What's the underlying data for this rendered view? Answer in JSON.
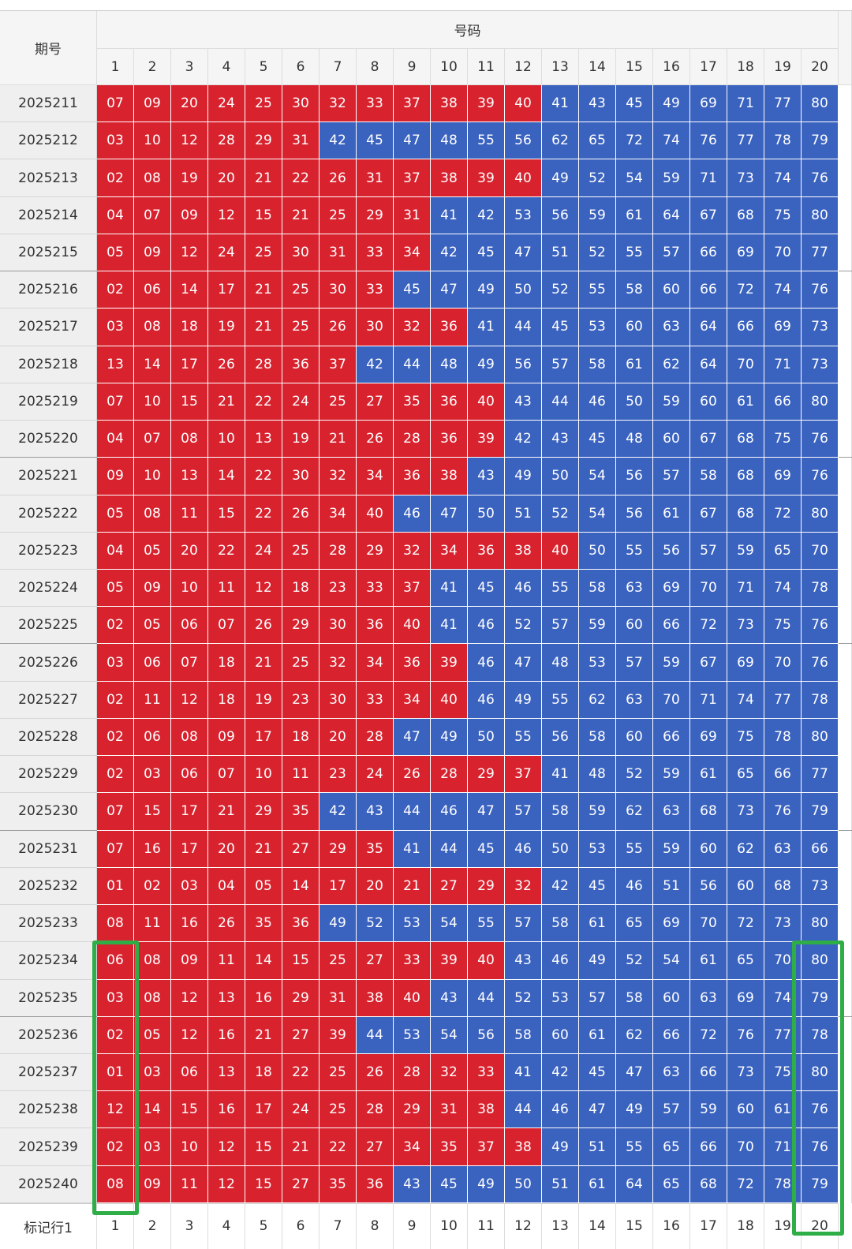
{
  "table": {
    "header": {
      "period": "期号",
      "numbers": "号码",
      "columns": [
        1,
        2,
        3,
        4,
        5,
        6,
        7,
        8,
        9,
        10,
        11,
        12,
        13,
        14,
        15,
        16,
        17,
        18,
        19,
        20
      ]
    },
    "rows": [
      {
        "period": "2025211",
        "numbers": [
          "07",
          "09",
          "20",
          "24",
          "25",
          "30",
          "32",
          "33",
          "37",
          "38",
          "39",
          "40",
          "41",
          "43",
          "45",
          "49",
          "69",
          "71",
          "77",
          "80"
        ]
      },
      {
        "period": "2025212",
        "numbers": [
          "03",
          "10",
          "12",
          "28",
          "29",
          "31",
          "42",
          "45",
          "47",
          "48",
          "55",
          "56",
          "62",
          "65",
          "72",
          "74",
          "76",
          "77",
          "78",
          "79"
        ]
      },
      {
        "period": "2025213",
        "numbers": [
          "02",
          "08",
          "19",
          "20",
          "21",
          "22",
          "26",
          "31",
          "37",
          "38",
          "39",
          "40",
          "49",
          "52",
          "54",
          "59",
          "71",
          "73",
          "74",
          "76"
        ]
      },
      {
        "period": "2025214",
        "numbers": [
          "04",
          "07",
          "09",
          "12",
          "15",
          "21",
          "25",
          "29",
          "31",
          "41",
          "42",
          "53",
          "56",
          "59",
          "61",
          "64",
          "67",
          "68",
          "75",
          "80"
        ]
      },
      {
        "period": "2025215",
        "numbers": [
          "05",
          "09",
          "12",
          "24",
          "25",
          "30",
          "31",
          "33",
          "34",
          "42",
          "45",
          "47",
          "51",
          "52",
          "55",
          "57",
          "66",
          "69",
          "70",
          "77"
        ]
      },
      {
        "period": "2025216",
        "numbers": [
          "02",
          "06",
          "14",
          "17",
          "21",
          "25",
          "30",
          "33",
          "45",
          "47",
          "49",
          "50",
          "52",
          "55",
          "58",
          "60",
          "66",
          "72",
          "74",
          "76"
        ]
      },
      {
        "period": "2025217",
        "numbers": [
          "03",
          "08",
          "18",
          "19",
          "21",
          "25",
          "26",
          "30",
          "32",
          "36",
          "41",
          "44",
          "45",
          "53",
          "60",
          "63",
          "64",
          "66",
          "69",
          "73"
        ]
      },
      {
        "period": "2025218",
        "numbers": [
          "13",
          "14",
          "17",
          "26",
          "28",
          "36",
          "37",
          "42",
          "44",
          "48",
          "49",
          "56",
          "57",
          "58",
          "61",
          "62",
          "64",
          "70",
          "71",
          "73"
        ]
      },
      {
        "period": "2025219",
        "numbers": [
          "07",
          "10",
          "15",
          "21",
          "22",
          "24",
          "25",
          "27",
          "35",
          "36",
          "40",
          "43",
          "44",
          "46",
          "50",
          "59",
          "60",
          "61",
          "66",
          "80"
        ]
      },
      {
        "period": "2025220",
        "numbers": [
          "04",
          "07",
          "08",
          "10",
          "13",
          "19",
          "21",
          "26",
          "28",
          "36",
          "39",
          "42",
          "43",
          "45",
          "48",
          "60",
          "67",
          "68",
          "75",
          "76"
        ]
      },
      {
        "period": "2025221",
        "numbers": [
          "09",
          "10",
          "13",
          "14",
          "22",
          "30",
          "32",
          "34",
          "36",
          "38",
          "43",
          "49",
          "50",
          "54",
          "56",
          "57",
          "58",
          "68",
          "69",
          "76"
        ]
      },
      {
        "period": "2025222",
        "numbers": [
          "05",
          "08",
          "11",
          "15",
          "22",
          "26",
          "34",
          "40",
          "46",
          "47",
          "50",
          "51",
          "52",
          "54",
          "56",
          "61",
          "67",
          "68",
          "72",
          "80"
        ]
      },
      {
        "period": "2025223",
        "numbers": [
          "04",
          "05",
          "20",
          "22",
          "24",
          "25",
          "28",
          "29",
          "32",
          "34",
          "36",
          "38",
          "40",
          "50",
          "55",
          "56",
          "57",
          "59",
          "65",
          "70"
        ]
      },
      {
        "period": "2025224",
        "numbers": [
          "05",
          "09",
          "10",
          "11",
          "12",
          "18",
          "23",
          "33",
          "37",
          "41",
          "45",
          "46",
          "55",
          "58",
          "63",
          "69",
          "70",
          "71",
          "74",
          "78"
        ]
      },
      {
        "period": "2025225",
        "numbers": [
          "02",
          "05",
          "06",
          "07",
          "26",
          "29",
          "30",
          "36",
          "40",
          "41",
          "46",
          "52",
          "57",
          "59",
          "60",
          "66",
          "72",
          "73",
          "75",
          "76"
        ]
      },
      {
        "period": "2025226",
        "numbers": [
          "03",
          "06",
          "07",
          "18",
          "21",
          "25",
          "32",
          "34",
          "36",
          "39",
          "46",
          "47",
          "48",
          "53",
          "57",
          "59",
          "67",
          "69",
          "70",
          "76"
        ]
      },
      {
        "period": "2025227",
        "numbers": [
          "02",
          "11",
          "12",
          "18",
          "19",
          "23",
          "30",
          "33",
          "34",
          "40",
          "46",
          "49",
          "55",
          "62",
          "63",
          "70",
          "71",
          "74",
          "77",
          "78"
        ]
      },
      {
        "period": "2025228",
        "numbers": [
          "02",
          "06",
          "08",
          "09",
          "17",
          "18",
          "20",
          "28",
          "47",
          "49",
          "50",
          "55",
          "56",
          "58",
          "60",
          "66",
          "69",
          "75",
          "78",
          "80"
        ]
      },
      {
        "period": "2025229",
        "numbers": [
          "02",
          "03",
          "06",
          "07",
          "10",
          "11",
          "23",
          "24",
          "26",
          "28",
          "29",
          "37",
          "41",
          "48",
          "52",
          "59",
          "61",
          "65",
          "66",
          "77"
        ]
      },
      {
        "period": "2025230",
        "numbers": [
          "07",
          "15",
          "17",
          "21",
          "29",
          "35",
          "42",
          "43",
          "44",
          "46",
          "47",
          "57",
          "58",
          "59",
          "62",
          "63",
          "68",
          "73",
          "76",
          "79"
        ]
      },
      {
        "period": "2025231",
        "numbers": [
          "07",
          "16",
          "17",
          "20",
          "21",
          "27",
          "29",
          "35",
          "41",
          "44",
          "45",
          "46",
          "50",
          "53",
          "55",
          "59",
          "60",
          "62",
          "63",
          "66"
        ]
      },
      {
        "period": "2025232",
        "numbers": [
          "01",
          "02",
          "03",
          "04",
          "05",
          "14",
          "17",
          "20",
          "21",
          "27",
          "29",
          "32",
          "42",
          "45",
          "46",
          "51",
          "56",
          "60",
          "68",
          "73"
        ]
      },
      {
        "period": "2025233",
        "numbers": [
          "08",
          "11",
          "16",
          "26",
          "35",
          "36",
          "49",
          "52",
          "53",
          "54",
          "55",
          "57",
          "58",
          "61",
          "65",
          "69",
          "70",
          "72",
          "73",
          "80"
        ]
      },
      {
        "period": "2025234",
        "numbers": [
          "06",
          "08",
          "09",
          "11",
          "14",
          "15",
          "25",
          "27",
          "33",
          "39",
          "40",
          "43",
          "46",
          "49",
          "52",
          "54",
          "61",
          "65",
          "70",
          "80"
        ]
      },
      {
        "period": "2025235",
        "numbers": [
          "03",
          "08",
          "12",
          "13",
          "16",
          "29",
          "31",
          "38",
          "40",
          "43",
          "44",
          "52",
          "53",
          "57",
          "58",
          "60",
          "63",
          "69",
          "74",
          "79"
        ]
      },
      {
        "period": "2025236",
        "numbers": [
          "02",
          "05",
          "12",
          "16",
          "21",
          "27",
          "39",
          "44",
          "53",
          "54",
          "56",
          "58",
          "60",
          "61",
          "62",
          "66",
          "72",
          "76",
          "77",
          "78"
        ]
      },
      {
        "period": "2025237",
        "numbers": [
          "01",
          "03",
          "06",
          "13",
          "18",
          "22",
          "25",
          "26",
          "28",
          "32",
          "33",
          "41",
          "42",
          "45",
          "47",
          "63",
          "66",
          "73",
          "75",
          "80"
        ]
      },
      {
        "period": "2025238",
        "numbers": [
          "12",
          "14",
          "15",
          "16",
          "17",
          "24",
          "25",
          "28",
          "29",
          "31",
          "38",
          "44",
          "46",
          "47",
          "49",
          "57",
          "59",
          "60",
          "61",
          "76"
        ]
      },
      {
        "period": "2025239",
        "numbers": [
          "02",
          "03",
          "10",
          "12",
          "15",
          "21",
          "22",
          "27",
          "34",
          "35",
          "37",
          "38",
          "49",
          "51",
          "55",
          "65",
          "66",
          "70",
          "71",
          "76"
        ]
      },
      {
        "period": "2025240",
        "numbers": [
          "08",
          "09",
          "11",
          "12",
          "15",
          "27",
          "35",
          "36",
          "43",
          "45",
          "49",
          "50",
          "51",
          "61",
          "64",
          "65",
          "68",
          "72",
          "78",
          "79"
        ]
      }
    ],
    "footer": {
      "label": "标记行1",
      "cells": [
        1,
        2,
        3,
        4,
        5,
        6,
        7,
        8,
        9,
        10,
        11,
        12,
        13,
        14,
        15,
        16,
        17,
        18,
        19,
        20
      ]
    },
    "colors": {
      "low": "#d8232f",
      "high": "#3a62bf"
    },
    "low_max": 40
  }
}
